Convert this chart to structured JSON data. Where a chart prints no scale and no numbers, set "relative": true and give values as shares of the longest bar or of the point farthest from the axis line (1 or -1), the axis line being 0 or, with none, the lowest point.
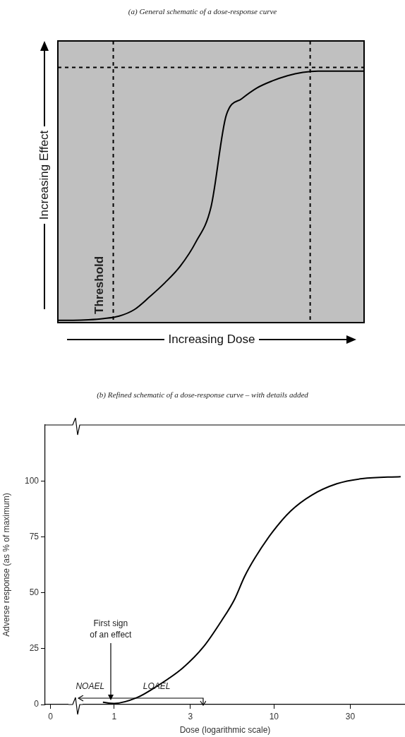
{
  "chart_data": [
    {
      "type": "line",
      "title": "(a) General schematic of a dose-response curve",
      "xlabel": "Increasing Dose",
      "ylabel": "Increasing Effect",
      "relative": true,
      "categories": [
        null,
        null,
        null,
        null,
        null,
        null,
        null,
        null,
        null,
        null,
        null,
        null,
        null,
        null,
        null,
        null,
        null,
        null,
        null,
        null,
        null
      ],
      "series": [
        {
          "color": "#000000",
          "values": [
            0.009,
            0.009,
            0.011,
            0.016,
            0.026,
            0.052,
            0.103,
            0.159,
            0.225,
            0.319,
            0.459,
            0.825,
            0.89,
            0.933,
            0.961,
            0.982,
            0.995,
            1,
            1,
            1,
            1
          ]
        }
      ],
      "ref_lines": [
        {
          "axis": "y",
          "value": 1.015,
          "line_style": "dashed",
          "color": "#000000"
        }
      ],
      "annotations": [
        "Threshold"
      ]
    },
    {
      "type": "line",
      "title": "(b) Refined schematic of a dose-response curve – with details added",
      "xlabel": "Dose (logarithmic scale)",
      "ylabel": "Adverse response (as % of maximum)",
      "log": "x",
      "xlim": [
        0.37,
        66
      ],
      "xticks": [
        {
          "value": 0.4,
          "label": "0"
        },
        1,
        3,
        10,
        30
      ],
      "ylim": [
        0,
        125
      ],
      "yticks": [
        0,
        25,
        50,
        75,
        100
      ],
      "series": [
        {
          "color": "#000000",
          "x": [
            0.85,
            1,
            1.39,
            1.87,
            2.7,
            3.63,
            4.7,
            5.65,
            6.55,
            7.59,
            9.8,
            12.7,
            17.1,
            24.7,
            35.6,
            62
          ],
          "values": [
            1,
            0.5,
            3.1,
            8.4,
            16.5,
            25.9,
            37.5,
            46.9,
            57.3,
            65.5,
            77.2,
            86.5,
            93.5,
            98.7,
            101,
            101.9
          ]
        }
      ],
      "annotations": [
        "First sign\nof an effect",
        "NOAEL",
        "LOAEL"
      ]
    }
  ]
}
